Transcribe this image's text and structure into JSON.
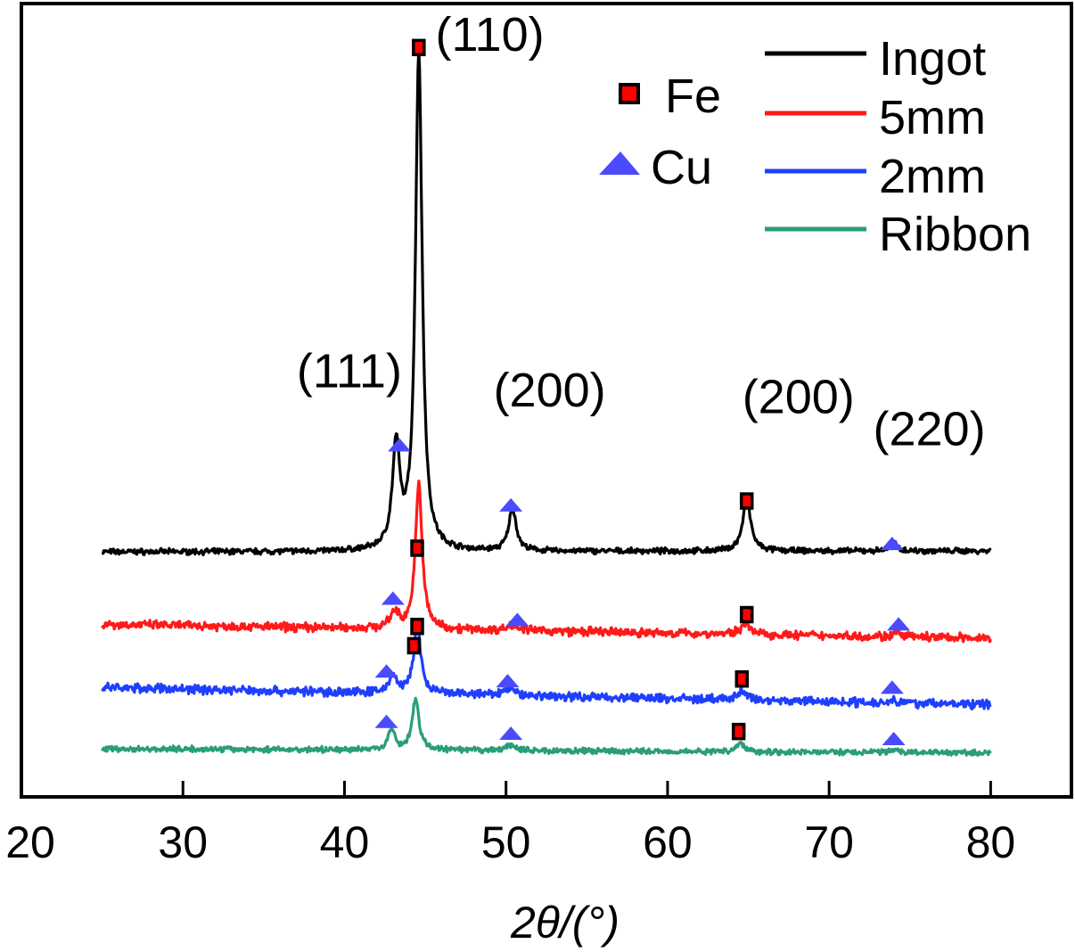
{
  "chart_data": {
    "type": "line",
    "title": "",
    "xlabel": "2θ/(°)",
    "ylabel": "",
    "xlim": [
      20,
      85
    ],
    "x_ticks": [
      20,
      30,
      40,
      50,
      60,
      70,
      80
    ],
    "x_tick_labels": [
      "20",
      "30",
      "40",
      "50",
      "60",
      "70",
      "80"
    ],
    "y_ticks_shown": false,
    "grid": false,
    "legend_position": "top-right",
    "series": [
      {
        "name": "Ingot",
        "color": "#000000",
        "x_range": [
          25,
          80
        ],
        "baseline": [
          0.85,
          0.94
        ],
        "noise": 0.9,
        "peaks": [
          {
            "x": 43.2,
            "height": 9.5,
            "width": 0.55
          },
          {
            "x": 44.6,
            "height": 46.5,
            "width": 0.5
          },
          {
            "x": 50.4,
            "height": 4.0,
            "width": 0.55
          },
          {
            "x": 64.9,
            "height": 4.7,
            "width": 0.6
          },
          {
            "x": 74.0,
            "height": 0.7,
            "width": 0.6
          }
        ]
      },
      {
        "name": "5mm",
        "color": "#ff1a1a",
        "x_range": [
          25,
          80
        ],
        "baseline": [
          -5.9,
          -7.2
        ],
        "noise": 1.4,
        "peaks": [
          {
            "x": 43.1,
            "height": 1.5,
            "width": 0.6
          },
          {
            "x": 44.6,
            "height": 13.5,
            "width": 0.5
          },
          {
            "x": 50.5,
            "height": 0.6,
            "width": 0.8
          },
          {
            "x": 64.8,
            "height": 1.1,
            "width": 0.6
          },
          {
            "x": 74.2,
            "height": 0.3,
            "width": 0.6
          }
        ]
      },
      {
        "name": "2mm",
        "color": "#1f3fff",
        "x_range": [
          25,
          80
        ],
        "baseline": [
          -11.8,
          -13.4
        ],
        "noise": 1.4,
        "peaks": [
          {
            "x": 43.0,
            "height": 1.6,
            "width": 0.6
          },
          {
            "x": 44.5,
            "height": 6.5,
            "width": 0.5
          },
          {
            "x": 50.2,
            "height": 0.6,
            "width": 0.8
          },
          {
            "x": 64.6,
            "height": 0.9,
            "width": 0.6
          },
          {
            "x": 74.0,
            "height": 0.3,
            "width": 0.6
          }
        ]
      },
      {
        "name": "Ribbon",
        "color": "#2a9d7a",
        "x_range": [
          25,
          80
        ],
        "baseline": [
          -17.5,
          -17.9
        ],
        "noise": 0.9,
        "peaks": [
          {
            "x": 42.9,
            "height": 1.9,
            "width": 0.5
          },
          {
            "x": 44.4,
            "height": 4.8,
            "width": 0.5
          },
          {
            "x": 50.3,
            "height": 0.5,
            "width": 0.7
          },
          {
            "x": 64.5,
            "height": 0.8,
            "width": 0.6
          },
          {
            "x": 74.0,
            "height": 0.3,
            "width": 0.6
          }
        ]
      }
    ],
    "markers": [
      {
        "type": "Fe",
        "x": 44.6,
        "y": 47.9
      },
      {
        "type": "Cu",
        "x": 43.4,
        "y": 10.8
      },
      {
        "type": "Cu",
        "x": 50.3,
        "y": 5.2
      },
      {
        "type": "Fe",
        "x": 64.9,
        "y": 5.6
      },
      {
        "type": "Cu",
        "x": 73.9,
        "y": 1.6
      },
      {
        "type": "Fe",
        "x": 44.5,
        "y": 1.2
      },
      {
        "type": "Cu",
        "x": 43.0,
        "y": -3.5
      },
      {
        "type": "Cu",
        "x": 50.7,
        "y": -5.5
      },
      {
        "type": "Fe",
        "x": 64.9,
        "y": -5.0
      },
      {
        "type": "Cu",
        "x": 74.3,
        "y": -5.9
      },
      {
        "type": "Fe",
        "x": 44.5,
        "y": -6.1
      },
      {
        "type": "Cu",
        "x": 42.6,
        "y": -10.3
      },
      {
        "type": "Cu",
        "x": 50.1,
        "y": -11.2
      },
      {
        "type": "Fe",
        "x": 64.6,
        "y": -11.0
      },
      {
        "type": "Cu",
        "x": 73.9,
        "y": -11.8
      },
      {
        "type": "Fe",
        "x": 44.3,
        "y": -7.9
      },
      {
        "type": "Cu",
        "x": 42.6,
        "y": -15.0
      },
      {
        "type": "Cu",
        "x": 50.3,
        "y": -16.1
      },
      {
        "type": "Fe",
        "x": 64.4,
        "y": -15.9
      },
      {
        "type": "Cu",
        "x": 74.0,
        "y": -16.6
      }
    ],
    "annotations": [
      {
        "text": "(110)",
        "x": 49.0,
        "y": 47.6
      },
      {
        "text": "(111)",
        "x": 40.3,
        "y": 16.2
      },
      {
        "text": "(200)",
        "x": 52.7,
        "y": 14.4
      },
      {
        "text": "(200)",
        "x": 68.1,
        "y": 13.8
      },
      {
        "text": "(220)",
        "x": 76.2,
        "y": 10.8
      }
    ],
    "marker_legend": [
      {
        "label": "Fe",
        "symbol": "square",
        "fill": "#ff0000",
        "stroke": "#000000"
      },
      {
        "label": "Cu",
        "symbol": "triangle",
        "fill": "#4a4aff",
        "stroke": "#4a4aff"
      }
    ]
  }
}
